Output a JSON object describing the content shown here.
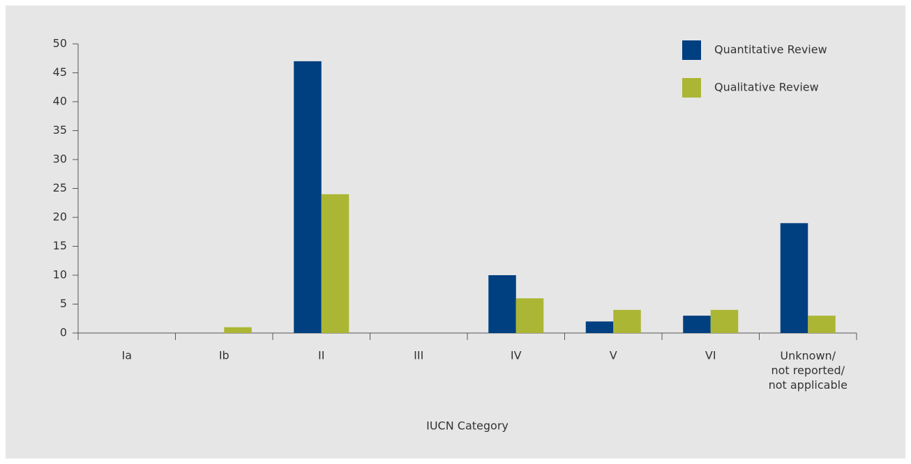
{
  "chart_data": {
    "type": "bar",
    "x_label": "IUCN Category",
    "categories": [
      "Ia",
      "Ib",
      "II",
      "III",
      "IV",
      "V",
      "VI",
      "Unknown/\nnot reported/\nnot applicable"
    ],
    "series": [
      {
        "name": "Quantitative Review",
        "color": "#003f80",
        "values": [
          0,
          0,
          47,
          0,
          10,
          2,
          3,
          19
        ]
      },
      {
        "name": "Qualitative Review",
        "color": "#abb634",
        "values": [
          0,
          1,
          24,
          0,
          6,
          4,
          4,
          3
        ]
      }
    ],
    "ylim": [
      0,
      50
    ],
    "yticks": [
      0,
      5,
      10,
      15,
      20,
      25,
      30,
      35,
      40,
      45,
      50
    ],
    "grid": false,
    "legend": "top-right"
  }
}
